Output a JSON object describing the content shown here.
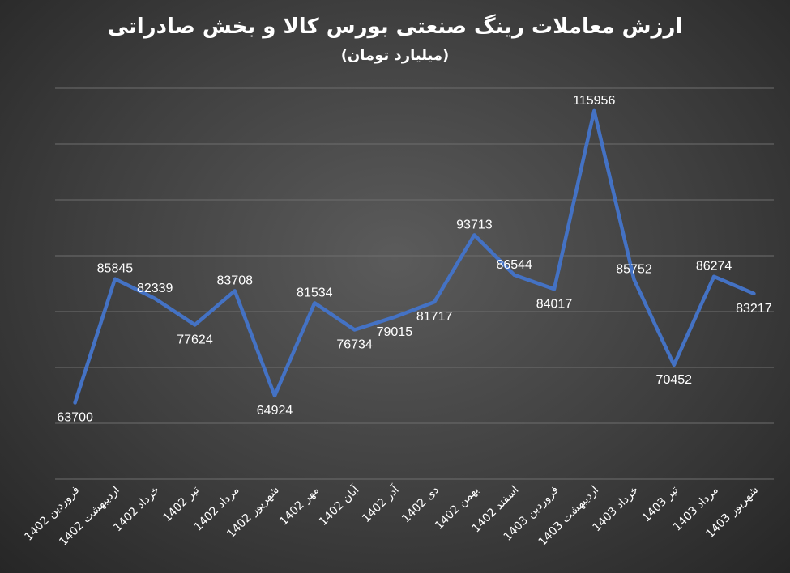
{
  "chart_data": {
    "type": "line",
    "title": "ارزش معاملات رینگ صنعتی بورس کالا و بخش صادراتی",
    "subtitle": "(میلیارد تومان)",
    "categories": [
      "فروردین 1402",
      "اردیبهشت 1402",
      "خرداد 1402",
      "تیر 1402",
      "مرداد 1402",
      "شهریور 1402",
      "مهر 1402",
      "آبان 1402",
      "آذر 1402",
      "دی 1402",
      "بهمن 1402",
      "اسفند 1402",
      "فروردین 1403",
      "اردیبهشت 1403",
      "خرداد 1403",
      "تیر 1403",
      "مرداد 1403",
      "شهریور 1403"
    ],
    "series": [
      {
        "values": [
          63700,
          85845,
          82339,
          77624,
          83708,
          64924,
          81534,
          76734,
          79015,
          81717,
          93713,
          86544,
          84017,
          115956,
          85752,
          70452,
          86274,
          83217
        ]
      }
    ],
    "data_labels": [
      "63700",
      "85845",
      "82339",
      "77624",
      "83708",
      "64924",
      "81534",
      "76734",
      "79015",
      "81717",
      "93713",
      "86544",
      "84017",
      "115956",
      "85752",
      "70452",
      "86274",
      "83217"
    ],
    "ylim": [
      50000,
      120000
    ],
    "grid": true,
    "legend": "none",
    "colors": {
      "line": "#4472c4",
      "grid": "#6e6e6e",
      "text": "#ffffff"
    }
  }
}
